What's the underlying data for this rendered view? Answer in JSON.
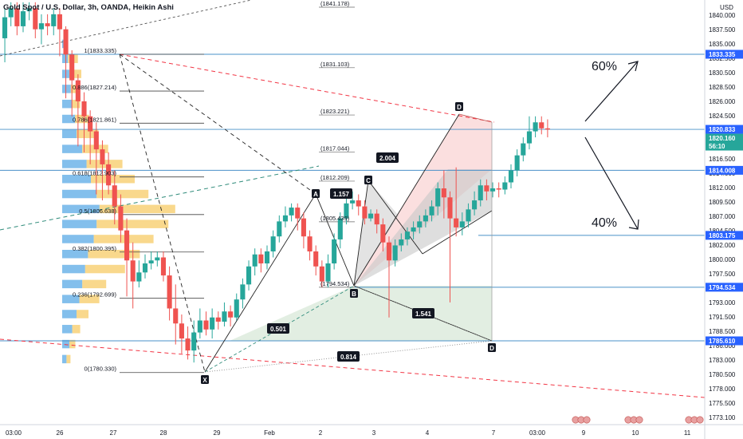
{
  "header": {
    "title": "Gold Spot / U.S. Dollar, 3h, OANDA, Heikin Ashi",
    "currency": "USD"
  },
  "colors": {
    "up": "#26a69a",
    "down": "#ef5350",
    "blue_line": "#2962ff",
    "price_label_bg": "#2962ff",
    "current_price_bg": "#26a69a",
    "fib_line": "#787b86",
    "red_dash": "#f23645",
    "green_dash": "#2e8b7a",
    "pattern_red": "#f8c4c4",
    "pattern_grey": "#c8c8c8",
    "pattern_green": "#cfe3cf",
    "vp_blue": "#5aa9e6",
    "vp_yellow": "#f7c75b"
  },
  "chart_data": {
    "type": "candlestick",
    "instrument": "Gold Spot / U.S. Dollar",
    "interval": "3h",
    "source": "OANDA",
    "style": "Heikin Ashi",
    "y_axis": {
      "ticks": [
        1840.0,
        1837.5,
        1835.0,
        1832.5,
        1830.5,
        1828.5,
        1826.0,
        1824.5,
        1822.0,
        1819.5,
        1816.5,
        1814.0,
        1812.0,
        1809.5,
        1807.0,
        1804.5,
        1802.0,
        1800.0,
        1797.5,
        1795.0,
        1793.0,
        1791.5,
        1788.5,
        1786.0,
        1783.0,
        1780.5,
        1778.0,
        1775.5,
        1773.1
      ],
      "tick_labels": [
        "1840.000",
        "1837.500",
        "1835.000",
        "1832.500",
        "1830.500",
        "1828.500",
        "1826.000",
        "1824.500",
        "1822.000",
        "1819.500",
        "1816.500",
        "1814.000",
        "1812.000",
        "1809.500",
        "1807.000",
        "1804.500",
        "1802.000",
        "1800.000",
        "1797.500",
        "1795.000",
        "1793.000",
        "1791.500",
        "1788.500",
        "1786.000",
        "1783.000",
        "1780.500",
        "1778.000",
        "1775.500",
        "1773.100"
      ],
      "price_labels": [
        {
          "text": "1833.335",
          "price": 1833.335,
          "kind": "blue"
        },
        {
          "text": "1820.833",
          "price": 1820.833,
          "kind": "blue"
        },
        {
          "text": "1820.160",
          "price": 1820.16,
          "kind": "current"
        },
        {
          "text": "56:10",
          "price": 1819.0,
          "kind": "current"
        },
        {
          "text": "1814.008",
          "price": 1814.008,
          "kind": "blue"
        },
        {
          "text": "1803.175",
          "price": 1803.175,
          "kind": "blue"
        },
        {
          "text": "1794.534",
          "price": 1794.534,
          "kind": "blue"
        },
        {
          "text": "1785.610",
          "price": 1785.61,
          "kind": "blue"
        }
      ]
    },
    "x_axis": {
      "labels": [
        "03:00",
        "26",
        "27",
        "28",
        "29",
        "Feb",
        "2",
        "3",
        "4",
        "7",
        "03:00",
        "9",
        "10",
        "11"
      ]
    },
    "horizontal_levels": [
      1833.335,
      1820.833,
      1814.008,
      1803.175,
      1794.534,
      1785.61
    ],
    "fibonacci": [
      {
        "label": "1(1833.335)",
        "price": 1833.335
      },
      {
        "label": "0.886(1827.214)",
        "price": 1827.214
      },
      {
        "label": "0.786(1821.861)",
        "price": 1821.861
      },
      {
        "label": "0.618(1812.903)",
        "price": 1812.903
      },
      {
        "label": "0.5(1806.638)",
        "price": 1806.638
      },
      {
        "label": "0.382(1800.395)",
        "price": 1800.395
      },
      {
        "label": "0.236(1792.699)",
        "price": 1792.699
      },
      {
        "label": "0(1780.330)",
        "price": 1780.33
      }
    ],
    "extension_labels": [
      {
        "label": "(1841.178)",
        "price": 1841.178
      },
      {
        "label": "(1831.103)",
        "price": 1831.103
      },
      {
        "label": "(1823.221)",
        "price": 1823.221
      },
      {
        "label": "(1817.044)",
        "price": 1817.044
      },
      {
        "label": "(1812.209)",
        "price": 1812.209
      },
      {
        "label": "(1805.439)",
        "price": 1805.439
      },
      {
        "label": "(1794.534)",
        "price": 1794.534
      }
    ],
    "pattern_points": [
      {
        "label": "X",
        "price": 1780.33
      },
      {
        "label": "A",
        "price": 1808.5
      },
      {
        "label": "B",
        "price": 1794.534
      },
      {
        "label": "C",
        "price": 1811.5
      },
      {
        "label": "D",
        "price": 1823.221
      },
      {
        "label": "D",
        "price": 1785.61
      }
    ],
    "ratios": [
      "2.004",
      "1.157",
      "0.501",
      "1.541",
      "0.814"
    ],
    "annotations": [
      {
        "text": "60%",
        "direction": "up"
      },
      {
        "text": "40%",
        "direction": "down"
      }
    ],
    "candles": [
      {
        "o": 1836.0,
        "c": 1839.5,
        "h": 1841.0,
        "l": 1832.0
      },
      {
        "o": 1839.5,
        "c": 1841.0,
        "h": 1842.0,
        "l": 1838.0
      },
      {
        "o": 1841.0,
        "c": 1838.0,
        "h": 1842.0,
        "l": 1836.5
      },
      {
        "o": 1838.0,
        "c": 1840.5,
        "h": 1842.0,
        "l": 1837.0
      },
      {
        "o": 1840.5,
        "c": 1841.0,
        "h": 1842.0,
        "l": 1839.0
      },
      {
        "o": 1841.0,
        "c": 1837.5,
        "h": 1842.0,
        "l": 1836.0
      },
      {
        "o": 1837.5,
        "c": 1838.5,
        "h": 1840.0,
        "l": 1835.0
      },
      {
        "o": 1838.5,
        "c": 1838.0,
        "h": 1840.0,
        "l": 1836.5
      },
      {
        "o": 1838.0,
        "c": 1840.0,
        "h": 1841.0,
        "l": 1836.5
      },
      {
        "o": 1840.0,
        "c": 1837.5,
        "h": 1841.0,
        "l": 1833.0
      },
      {
        "o": 1837.5,
        "c": 1833.3,
        "h": 1838.0,
        "l": 1826.0
      },
      {
        "o": 1833.3,
        "c": 1829.0,
        "h": 1834.0,
        "l": 1823.0
      },
      {
        "o": 1829.0,
        "c": 1825.5,
        "h": 1830.0,
        "l": 1818.0
      },
      {
        "o": 1825.5,
        "c": 1823.0,
        "h": 1827.0,
        "l": 1817.0
      },
      {
        "o": 1823.0,
        "c": 1820.5,
        "h": 1824.0,
        "l": 1815.0
      },
      {
        "o": 1820.5,
        "c": 1817.5,
        "h": 1822.0,
        "l": 1810.0
      },
      {
        "o": 1817.5,
        "c": 1815.0,
        "h": 1819.0,
        "l": 1809.0
      },
      {
        "o": 1815.0,
        "c": 1811.5,
        "h": 1817.0,
        "l": 1810.0
      },
      {
        "o": 1811.5,
        "c": 1808.0,
        "h": 1814.0,
        "l": 1805.0
      },
      {
        "o": 1808.0,
        "c": 1804.0,
        "h": 1810.0,
        "l": 1802.0
      },
      {
        "o": 1804.0,
        "c": 1799.0,
        "h": 1806.0,
        "l": 1793.0
      },
      {
        "o": 1799.0,
        "c": 1795.5,
        "h": 1802.0,
        "l": 1791.0
      },
      {
        "o": 1795.5,
        "c": 1797.0,
        "h": 1799.0,
        "l": 1794.5
      },
      {
        "o": 1797.0,
        "c": 1798.5,
        "h": 1800.0,
        "l": 1796.0
      },
      {
        "o": 1798.5,
        "c": 1799.0,
        "h": 1800.5,
        "l": 1797.5
      },
      {
        "o": 1799.0,
        "c": 1799.5,
        "h": 1800.5,
        "l": 1798.0
      },
      {
        "o": 1799.5,
        "c": 1796.5,
        "h": 1800.5,
        "l": 1795.5
      },
      {
        "o": 1796.5,
        "c": 1791.0,
        "h": 1798.0,
        "l": 1789.0
      },
      {
        "o": 1791.0,
        "c": 1788.5,
        "h": 1795.0,
        "l": 1785.0
      },
      {
        "o": 1788.5,
        "c": 1786.0,
        "h": 1790.0,
        "l": 1783.5
      },
      {
        "o": 1786.0,
        "c": 1784.0,
        "h": 1788.0,
        "l": 1782.5
      },
      {
        "o": 1784.0,
        "c": 1787.0,
        "h": 1789.0,
        "l": 1782.0
      },
      {
        "o": 1787.0,
        "c": 1789.0,
        "h": 1791.0,
        "l": 1786.0
      },
      {
        "o": 1789.0,
        "c": 1787.5,
        "h": 1790.5,
        "l": 1786.5
      },
      {
        "o": 1787.5,
        "c": 1789.5,
        "h": 1791.0,
        "l": 1786.0
      },
      {
        "o": 1789.5,
        "c": 1788.8,
        "h": 1790.5,
        "l": 1787.5
      },
      {
        "o": 1788.8,
        "c": 1790.5,
        "h": 1792.0,
        "l": 1788.0
      },
      {
        "o": 1790.5,
        "c": 1789.5,
        "h": 1791.5,
        "l": 1788.0
      },
      {
        "o": 1789.5,
        "c": 1792.5,
        "h": 1793.5,
        "l": 1789.0
      },
      {
        "o": 1792.5,
        "c": 1795.0,
        "h": 1796.0,
        "l": 1791.0
      },
      {
        "o": 1795.0,
        "c": 1798.0,
        "h": 1799.0,
        "l": 1794.0
      },
      {
        "o": 1798.0,
        "c": 1800.0,
        "h": 1801.0,
        "l": 1796.5
      },
      {
        "o": 1800.0,
        "c": 1798.5,
        "h": 1801.0,
        "l": 1797.0
      },
      {
        "o": 1798.5,
        "c": 1800.5,
        "h": 1801.5,
        "l": 1797.5
      },
      {
        "o": 1800.5,
        "c": 1803.0,
        "h": 1804.0,
        "l": 1799.5
      },
      {
        "o": 1803.0,
        "c": 1805.5,
        "h": 1806.5,
        "l": 1802.0
      },
      {
        "o": 1805.5,
        "c": 1806.5,
        "h": 1808.0,
        "l": 1804.5
      },
      {
        "o": 1806.5,
        "c": 1807.8,
        "h": 1808.5,
        "l": 1805.5
      },
      {
        "o": 1807.8,
        "c": 1806.0,
        "h": 1808.5,
        "l": 1804.0
      },
      {
        "o": 1806.0,
        "c": 1803.0,
        "h": 1807.0,
        "l": 1801.0
      },
      {
        "o": 1803.0,
        "c": 1800.5,
        "h": 1804.0,
        "l": 1799.0
      },
      {
        "o": 1800.5,
        "c": 1798.0,
        "h": 1801.5,
        "l": 1796.5
      },
      {
        "o": 1798.0,
        "c": 1795.5,
        "h": 1799.0,
        "l": 1794.5
      },
      {
        "o": 1795.5,
        "c": 1798.5,
        "h": 1800.0,
        "l": 1794.5
      },
      {
        "o": 1798.5,
        "c": 1802.5,
        "h": 1803.5,
        "l": 1797.5
      },
      {
        "o": 1802.5,
        "c": 1806.0,
        "h": 1807.0,
        "l": 1801.0
      },
      {
        "o": 1806.0,
        "c": 1808.5,
        "h": 1811.0,
        "l": 1805.0
      },
      {
        "o": 1808.5,
        "c": 1809.0,
        "h": 1810.5,
        "l": 1807.5
      },
      {
        "o": 1809.0,
        "c": 1808.0,
        "h": 1810.0,
        "l": 1806.5
      },
      {
        "o": 1808.0,
        "c": 1806.0,
        "h": 1809.0,
        "l": 1805.0
      },
      {
        "o": 1806.0,
        "c": 1806.8,
        "h": 1807.5,
        "l": 1805.5
      },
      {
        "o": 1806.8,
        "c": 1805.0,
        "h": 1807.5,
        "l": 1803.5
      },
      {
        "o": 1805.0,
        "c": 1802.0,
        "h": 1806.0,
        "l": 1800.5
      },
      {
        "o": 1802.0,
        "c": 1799.0,
        "h": 1803.0,
        "l": 1789.5
      },
      {
        "o": 1799.0,
        "c": 1801.5,
        "h": 1802.5,
        "l": 1798.0
      },
      {
        "o": 1801.5,
        "c": 1802.5,
        "h": 1803.5,
        "l": 1800.5
      },
      {
        "o": 1802.5,
        "c": 1803.8,
        "h": 1804.5,
        "l": 1801.5
      },
      {
        "o": 1803.8,
        "c": 1804.5,
        "h": 1805.5,
        "l": 1802.5
      },
      {
        "o": 1804.5,
        "c": 1805.5,
        "h": 1806.5,
        "l": 1803.5
      },
      {
        "o": 1805.5,
        "c": 1806.5,
        "h": 1807.5,
        "l": 1804.5
      },
      {
        "o": 1806.5,
        "c": 1808.0,
        "h": 1809.0,
        "l": 1805.5
      },
      {
        "o": 1808.0,
        "c": 1811.0,
        "h": 1812.0,
        "l": 1806.5
      },
      {
        "o": 1811.0,
        "c": 1809.5,
        "h": 1814.0,
        "l": 1806.0
      },
      {
        "o": 1809.5,
        "c": 1806.0,
        "h": 1810.5,
        "l": 1792.0
      },
      {
        "o": 1806.0,
        "c": 1804.5,
        "h": 1814.5,
        "l": 1803.0
      },
      {
        "o": 1804.5,
        "c": 1805.5,
        "h": 1807.0,
        "l": 1803.175
      },
      {
        "o": 1805.5,
        "c": 1807.5,
        "h": 1808.5,
        "l": 1804.5
      },
      {
        "o": 1807.5,
        "c": 1809.0,
        "h": 1810.5,
        "l": 1806.5
      },
      {
        "o": 1809.0,
        "c": 1811.5,
        "h": 1812.5,
        "l": 1808.0
      },
      {
        "o": 1811.5,
        "c": 1810.5,
        "h": 1812.5,
        "l": 1809.0
      },
      {
        "o": 1810.5,
        "c": 1811.0,
        "h": 1812.0,
        "l": 1809.5
      },
      {
        "o": 1811.0,
        "c": 1810.8,
        "h": 1812.0,
        "l": 1809.5
      },
      {
        "o": 1810.8,
        "c": 1812.0,
        "h": 1813.0,
        "l": 1810.0
      },
      {
        "o": 1812.0,
        "c": 1814.0,
        "h": 1815.0,
        "l": 1811.0
      },
      {
        "o": 1814.0,
        "c": 1816.5,
        "h": 1817.5,
        "l": 1813.0
      },
      {
        "o": 1816.5,
        "c": 1818.5,
        "h": 1819.5,
        "l": 1815.5
      },
      {
        "o": 1818.5,
        "c": 1820.5,
        "h": 1823.0,
        "l": 1817.5
      },
      {
        "o": 1820.5,
        "c": 1822.0,
        "h": 1823.0,
        "l": 1819.5
      },
      {
        "o": 1822.0,
        "c": 1821.0,
        "h": 1823.0,
        "l": 1820.0
      },
      {
        "o": 1821.0,
        "c": 1820.8,
        "h": 1822.5,
        "l": 1819.5
      }
    ],
    "volume_profile": [
      {
        "price": 1835.0,
        "blue": 0.3,
        "yellow": 0.0
      },
      {
        "price": 1832.5,
        "blue": 0.4,
        "yellow": 0.5
      },
      {
        "price": 1830.0,
        "blue": 0.5,
        "yellow": 0.6
      },
      {
        "price": 1827.5,
        "blue": 0.6,
        "yellow": 0.3
      },
      {
        "price": 1825.0,
        "blue": 0.7,
        "yellow": 0.4
      },
      {
        "price": 1822.5,
        "blue": 0.9,
        "yellow": 0.7
      },
      {
        "price": 1820.0,
        "blue": 1.0,
        "yellow": 1.1
      },
      {
        "price": 1817.5,
        "blue": 1.4,
        "yellow": 1.3
      },
      {
        "price": 1815.0,
        "blue": 1.7,
        "yellow": 1.8
      },
      {
        "price": 1812.5,
        "blue": 2.0,
        "yellow": 2.2
      },
      {
        "price": 1810.0,
        "blue": 2.4,
        "yellow": 2.6
      },
      {
        "price": 1807.5,
        "blue": 2.6,
        "yellow": 3.8
      },
      {
        "price": 1805.0,
        "blue": 2.4,
        "yellow": 3.6
      },
      {
        "price": 1802.5,
        "blue": 2.2,
        "yellow": 3.0
      },
      {
        "price": 1800.0,
        "blue": 1.8,
        "yellow": 2.6
      },
      {
        "price": 1797.5,
        "blue": 1.6,
        "yellow": 2.0
      },
      {
        "price": 1795.0,
        "blue": 1.4,
        "yellow": 1.2
      },
      {
        "price": 1792.5,
        "blue": 1.2,
        "yellow": 1.0
      },
      {
        "price": 1790.0,
        "blue": 1.0,
        "yellow": 0.6
      },
      {
        "price": 1787.5,
        "blue": 0.7,
        "yellow": 0.4
      },
      {
        "price": 1785.0,
        "blue": 0.5,
        "yellow": 0.3
      },
      {
        "price": 1782.5,
        "blue": 0.3,
        "yellow": 0.2
      }
    ]
  }
}
